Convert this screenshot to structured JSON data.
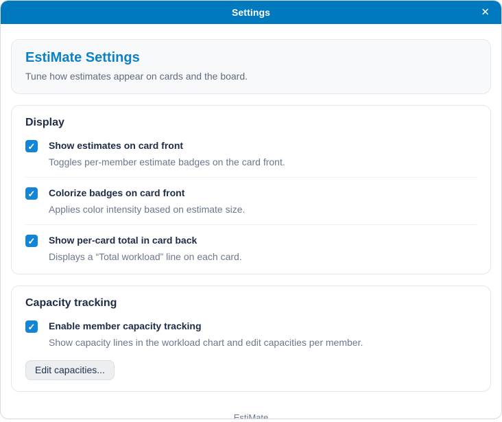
{
  "modal": {
    "title": "Settings",
    "close_icon": "✕",
    "footer_brand": "EstiMate"
  },
  "intro": {
    "title": "EstiMate Settings",
    "subtitle": "Tune how estimates appear on cards and the board."
  },
  "icons": {
    "check": "✓"
  },
  "sections": {
    "display": {
      "heading": "Display",
      "options": [
        {
          "label": "Show estimates on card front",
          "description": "Toggles per-member estimate badges on the card front.",
          "checked": true
        },
        {
          "label": "Colorize badges on card front",
          "description": "Applies color intensity based on estimate size.",
          "checked": true
        },
        {
          "label": "Show per-card total in card back",
          "description": "Displays a “Total workload” line on each card.",
          "checked": true
        }
      ]
    },
    "capacity": {
      "heading": "Capacity tracking",
      "options": [
        {
          "label": "Enable member capacity tracking",
          "description": "Show capacity lines in the workload chart and edit capacities per member.",
          "checked": true
        }
      ],
      "edit_button_label": "Edit capacities..."
    }
  },
  "colors": {
    "header_bg": "#0079bf",
    "accent_title": "#0c80c8",
    "checkbox_checked": "#1285d6",
    "text_dark": "#1d2b45",
    "text_secondary": "#6b778c",
    "intro_card_bg": "#f7f9fa",
    "card_border": "#e3e6ea",
    "button_bg": "#eceef0"
  }
}
